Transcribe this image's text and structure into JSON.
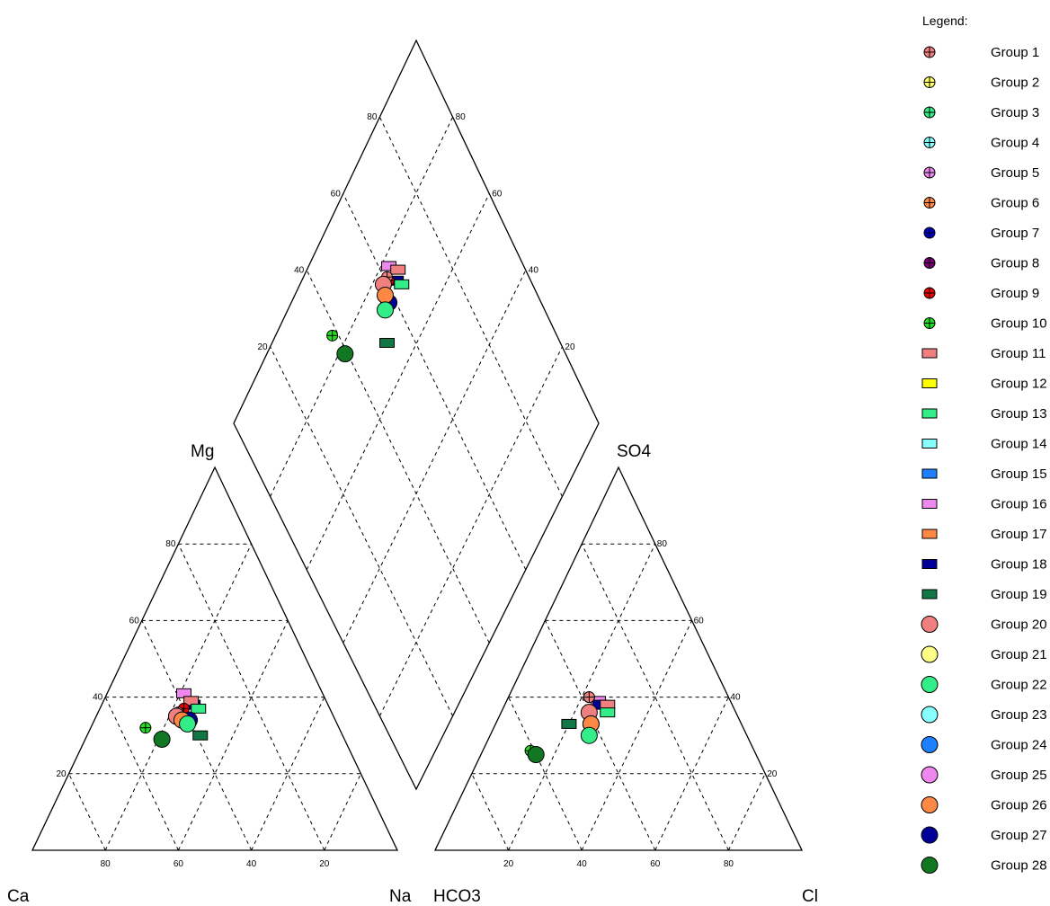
{
  "chart_data": {
    "type": "scatter",
    "subtype": "piper-diagram",
    "corner_labels": {
      "cation": {
        "left": "Ca",
        "right": "Na",
        "top": "Mg"
      },
      "anion": {
        "left": "HCO3",
        "right": "Cl",
        "top": "SO4"
      }
    },
    "tick_labels": [
      "20",
      "40",
      "60",
      "80"
    ],
    "legend": {
      "title": "Legend:",
      "position": "right",
      "entries": [
        {
          "name": "Group 1",
          "marker": "circle-cross",
          "color": "#f08080"
        },
        {
          "name": "Group 2",
          "marker": "circle-cross",
          "color": "#ffff66"
        },
        {
          "name": "Group 3",
          "marker": "circle-cross",
          "color": "#33ee88"
        },
        {
          "name": "Group 4",
          "marker": "circle-cross",
          "color": "#88ffff"
        },
        {
          "name": "Group 5",
          "marker": "circle-cross",
          "color": "#ee88ee"
        },
        {
          "name": "Group 6",
          "marker": "circle-cross",
          "color": "#ff8844"
        },
        {
          "name": "Group 7",
          "marker": "circle-cross",
          "color": "#0000cc"
        },
        {
          "name": "Group 8",
          "marker": "circle-cross",
          "color": "#770077"
        },
        {
          "name": "Group 9",
          "marker": "circle-cross",
          "color": "#ee0000"
        },
        {
          "name": "Group 10",
          "marker": "circle-cross",
          "color": "#22dd22"
        },
        {
          "name": "Group 11",
          "marker": "rect",
          "color": "#f08080"
        },
        {
          "name": "Group 12",
          "marker": "rect",
          "color": "#ffff00"
        },
        {
          "name": "Group 13",
          "marker": "rect",
          "color": "#33ee88"
        },
        {
          "name": "Group 14",
          "marker": "rect",
          "color": "#88ffff"
        },
        {
          "name": "Group 15",
          "marker": "rect",
          "color": "#1e7fff"
        },
        {
          "name": "Group 16",
          "marker": "rect",
          "color": "#ee88ee"
        },
        {
          "name": "Group 17",
          "marker": "rect",
          "color": "#ff8844"
        },
        {
          "name": "Group 18",
          "marker": "rect",
          "color": "#000099"
        },
        {
          "name": "Group 19",
          "marker": "rect",
          "color": "#117744"
        },
        {
          "name": "Group 20",
          "marker": "circle",
          "color": "#f08080"
        },
        {
          "name": "Group 21",
          "marker": "circle",
          "color": "#ffff88"
        },
        {
          "name": "Group 22",
          "marker": "circle",
          "color": "#33ee88"
        },
        {
          "name": "Group 23",
          "marker": "circle",
          "color": "#88ffff"
        },
        {
          "name": "Group 24",
          "marker": "circle",
          "color": "#1e7fff"
        },
        {
          "name": "Group 25",
          "marker": "circle",
          "color": "#ee88ee"
        },
        {
          "name": "Group 26",
          "marker": "circle",
          "color": "#ff8844"
        },
        {
          "name": "Group 27",
          "marker": "circle",
          "color": "#000099"
        },
        {
          "name": "Group 28",
          "marker": "circle",
          "color": "#117722"
        }
      ]
    },
    "points": [
      {
        "group": "Group 16",
        "cation": {
          "Ca": 38,
          "Mg": 41,
          "Na": 21
        },
        "anion": {
          "HCO3": 36,
          "SO4": 39,
          "Cl": 25
        }
      },
      {
        "group": "Group 18",
        "cation": {
          "Ca": 37,
          "Mg": 38,
          "Na": 25
        },
        "anion": {
          "HCO3": 36,
          "SO4": 38,
          "Cl": 26
        }
      },
      {
        "group": "Group 11",
        "cation": {
          "Ca": 37,
          "Mg": 39,
          "Na": 24
        },
        "anion": {
          "HCO3": 34,
          "SO4": 38,
          "Cl": 28
        }
      },
      {
        "group": "Group 13",
        "cation": {
          "Ca": 36,
          "Mg": 37,
          "Na": 27
        },
        "anion": {
          "HCO3": 35,
          "SO4": 36,
          "Cl": 29
        }
      },
      {
        "group": "Group 9",
        "cation": {
          "Ca": 40,
          "Mg": 37,
          "Na": 23
        },
        "anion": {
          "HCO3": 38,
          "SO4": 40,
          "Cl": 22
        }
      },
      {
        "group": "Group 1",
        "cation": {
          "Ca": 42,
          "Mg": 36,
          "Na": 22
        },
        "anion": {
          "HCO3": 38,
          "SO4": 40,
          "Cl": 22
        }
      },
      {
        "group": "Group 20",
        "cation": {
          "Ca": 43,
          "Mg": 35,
          "Na": 22
        },
        "anion": {
          "HCO3": 40,
          "SO4": 36,
          "Cl": 24
        }
      },
      {
        "group": "Group 27",
        "cation": {
          "Ca": 40,
          "Mg": 34,
          "Na": 26
        },
        "anion": {
          "HCO3": 41,
          "SO4": 33,
          "Cl": 26
        }
      },
      {
        "group": "Group 26",
        "cation": {
          "Ca": 42,
          "Mg": 34,
          "Na": 24
        },
        "anion": {
          "HCO3": 41,
          "SO4": 33,
          "Cl": 26
        }
      },
      {
        "group": "Group 22",
        "cation": {
          "Ca": 41,
          "Mg": 33,
          "Na": 26
        },
        "anion": {
          "HCO3": 43,
          "SO4": 30,
          "Cl": 27
        }
      },
      {
        "group": "Group 19",
        "cation": {
          "Ca": 39,
          "Mg": 30,
          "Na": 31
        },
        "anion": {
          "HCO3": 47,
          "SO4": 33,
          "Cl": 20
        }
      },
      {
        "group": "Group 10",
        "cation": {
          "Ca": 53,
          "Mg": 32,
          "Na": 15
        },
        "anion": {
          "HCO3": 61,
          "SO4": 26,
          "Cl": 13
        }
      },
      {
        "group": "Group 28",
        "cation": {
          "Ca": 50,
          "Mg": 29,
          "Na": 21
        },
        "anion": {
          "HCO3": 60,
          "SO4": 25,
          "Cl": 15
        }
      }
    ]
  }
}
